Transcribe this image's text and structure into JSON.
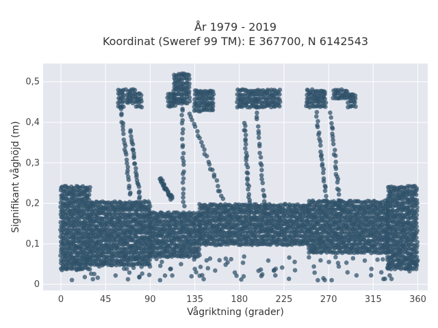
{
  "chart_data": {
    "type": "scatter",
    "title_lines": [
      "År 1979 - 2019",
      "Koordinat (Sweref 99 TM): E 367700, N 6142543"
    ],
    "xlabel": "Vågriktning (grader)",
    "ylabel": "Signifikant våghöjd (m)",
    "xlim": [
      -18,
      370
    ],
    "ylim": [
      -0.015,
      0.545
    ],
    "x_ticks": [
      0,
      45,
      90,
      135,
      180,
      225,
      270,
      315,
      360
    ],
    "y_ticks": [
      0,
      0.1,
      0.2,
      0.3,
      0.4,
      0.5
    ],
    "y_tick_labels": [
      "0",
      "0,1",
      "0,2",
      "0,3",
      "0,4",
      "0,5"
    ],
    "grid": true,
    "background": "#e5e7ef",
    "marker_color": "#2e5068",
    "marker_opacity": 0.72,
    "description_of_density": "Dense band of points between about 0.05 and 0.24 m across all directions, thickest near 0-30 and 330-360 degrees; upper clusters near 0.45-0.48 m around 60-80, 110-160, 180-220, 245-300 degrees with vertical streaks near 125 and 200 degrees; peak about 0.52 m near 122 degrees.",
    "clusters": [
      {
        "x": [
          0,
          30
        ],
        "y": [
          0.04,
          0.24
        ]
      },
      {
        "x": [
          30,
          90
        ],
        "y": [
          0.05,
          0.21
        ]
      },
      {
        "x": [
          90,
          140
        ],
        "y": [
          0.07,
          0.18
        ]
      },
      {
        "x": [
          140,
          250
        ],
        "y": [
          0.1,
          0.2
        ]
      },
      {
        "x": [
          250,
          330
        ],
        "y": [
          0.08,
          0.21
        ]
      },
      {
        "x": [
          330,
          360
        ],
        "y": [
          0.04,
          0.24
        ]
      },
      {
        "x": [
          58,
          64
        ],
        "y": [
          0.44,
          0.48
        ]
      },
      {
        "x": [
          66,
          75
        ],
        "y": [
          0.45,
          0.48
        ]
      },
      {
        "x": [
          76,
          82
        ],
        "y": [
          0.44,
          0.47
        ]
      },
      {
        "x": [
          108,
          115
        ],
        "y": [
          0.44,
          0.47
        ]
      },
      {
        "x": [
          114,
          130
        ],
        "y": [
          0.45,
          0.52
        ]
      },
      {
        "x": [
          135,
          155
        ],
        "y": [
          0.43,
          0.48
        ]
      },
      {
        "x": [
          178,
          222
        ],
        "y": [
          0.44,
          0.48
        ]
      },
      {
        "x": [
          248,
          268
        ],
        "y": [
          0.44,
          0.48
        ]
      },
      {
        "x": [
          275,
          290
        ],
        "y": [
          0.46,
          0.48
        ]
      },
      {
        "x": [
          290,
          298
        ],
        "y": [
          0.44,
          0.47
        ]
      }
    ],
    "streaks": [
      {
        "x": [
          122,
          124
        ],
        "y": [
          0.18,
          0.46
        ]
      },
      {
        "x": [
          196,
          206
        ],
        "y": [
          0.18,
          0.46
        ]
      },
      {
        "x": [
          60,
          70
        ],
        "y": [
          0.22,
          0.44
        ]
      },
      {
        "x": [
          70,
          80
        ],
        "y": [
          0.2,
          0.38
        ]
      },
      {
        "x": [
          130,
          165
        ],
        "y": [
          0.2,
          0.42
        ]
      },
      {
        "x": [
          185,
          190
        ],
        "y": [
          0.2,
          0.4
        ]
      },
      {
        "x": [
          258,
          268
        ],
        "y": [
          0.2,
          0.42
        ]
      },
      {
        "x": [
          272,
          282
        ],
        "y": [
          0.18,
          0.42
        ]
      },
      {
        "x": [
          100,
          112
        ],
        "y": [
          0.21,
          0.26
        ]
      }
    ]
  }
}
